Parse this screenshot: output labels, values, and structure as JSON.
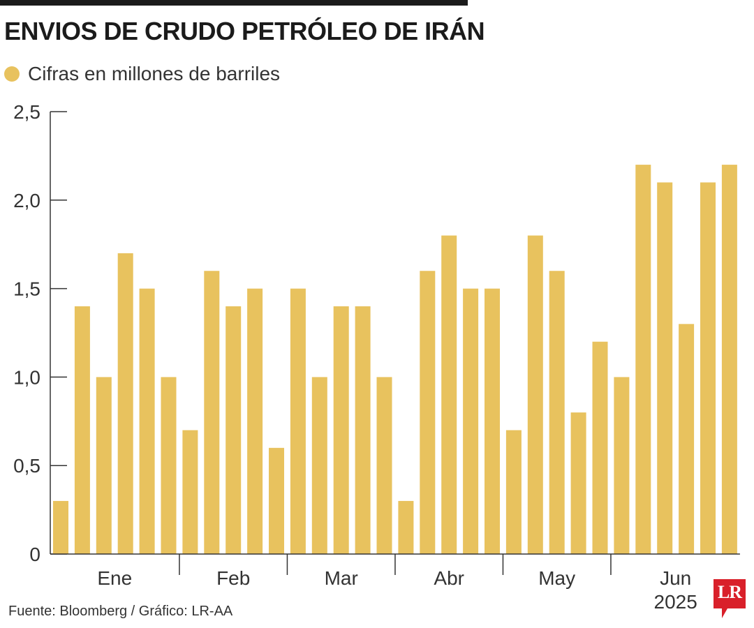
{
  "header": {
    "title": "ENVIOS DE CRUDO PETRÓLEO DE IRÁN"
  },
  "legend": {
    "label": "Cifras en millones de barriles"
  },
  "footer": {
    "source": "Fuente: Bloomberg / Gráfico: LR-AA",
    "logo_text": "LR"
  },
  "colors": {
    "bar": "#e8c25e",
    "axis": "#333333",
    "logo": "#d9202a"
  },
  "chart_data": {
    "type": "bar",
    "title": "ENVIOS DE CRUDO PETRÓLEO DE IRÁN",
    "ylabel": "",
    "xlabel": "",
    "ylim": [
      0,
      2.5
    ],
    "yticks": [
      "0",
      "0,5",
      "1,0",
      "1,5",
      "2,0",
      "2,5"
    ],
    "grid": false,
    "values": [
      0.3,
      1.4,
      1.0,
      1.7,
      1.5,
      1.0,
      0.7,
      1.6,
      1.4,
      1.5,
      0.6,
      1.5,
      1.0,
      1.4,
      1.4,
      1.0,
      0.3,
      1.6,
      1.8,
      1.5,
      1.5,
      0.7,
      1.8,
      1.6,
      0.8,
      1.2,
      1.0,
      2.2,
      2.1,
      1.3,
      2.1,
      2.2
    ],
    "months": [
      {
        "label": "Ene",
        "bars": 6
      },
      {
        "label": "Feb",
        "bars": 5
      },
      {
        "label": "Mar",
        "bars": 5
      },
      {
        "label": "Abr",
        "bars": 5
      },
      {
        "label": "May",
        "bars": 5
      },
      {
        "label": "Jun",
        "bars": 6
      }
    ],
    "year_label": "2025"
  }
}
